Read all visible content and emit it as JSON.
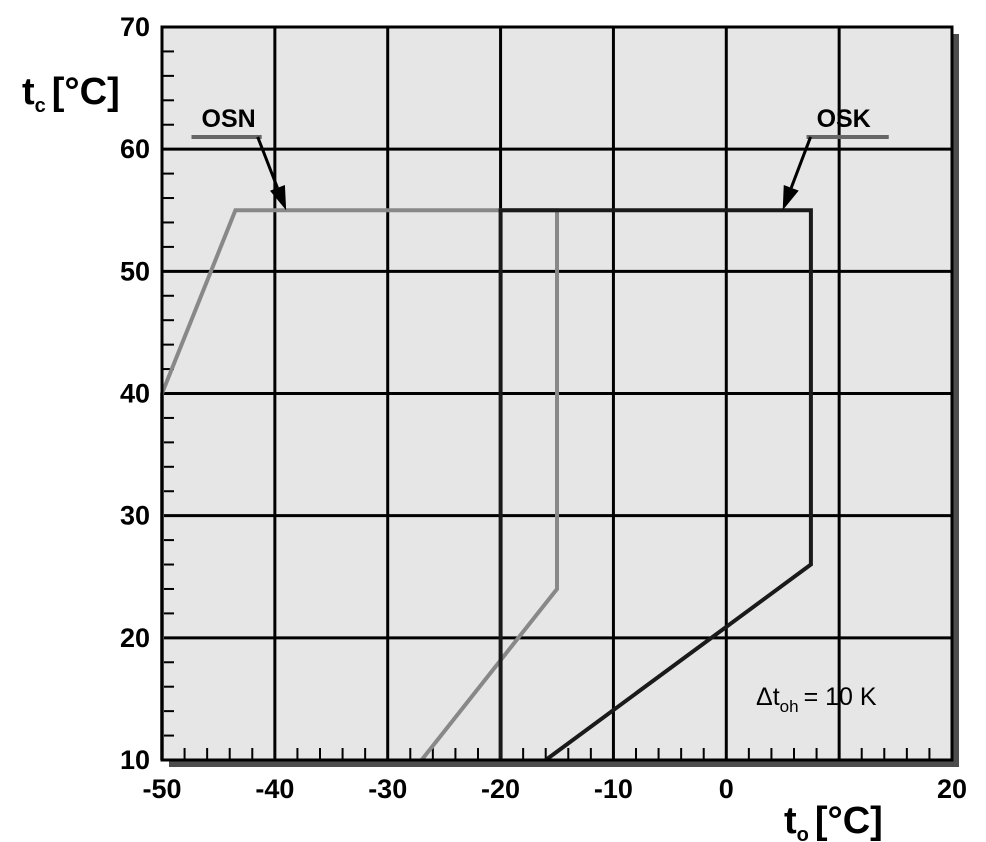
{
  "chart_data": {
    "type": "line",
    "xlabel": {
      "symbol": "t",
      "subscript": "o",
      "unit": "[°C]"
    },
    "ylabel": {
      "symbol": "t",
      "subscript": "c",
      "unit": "[°C]"
    },
    "xlim": [
      -50,
      20
    ],
    "ylim": [
      10,
      70
    ],
    "x_ticks": [
      -50,
      -40,
      -30,
      -20,
      -10,
      0,
      20
    ],
    "y_ticks": [
      10,
      20,
      30,
      40,
      50,
      60,
      70
    ],
    "grid": true,
    "series": [
      {
        "name": "OSN",
        "color": "#888888",
        "points": [
          [
            -50,
            10
          ],
          [
            -50,
            40
          ],
          [
            -43.5,
            55
          ],
          [
            -15,
            55
          ],
          [
            -15,
            24
          ],
          [
            -27,
            10
          ]
        ]
      },
      {
        "name": "OSK",
        "color": "#1a1a1a",
        "points": [
          [
            -20,
            10
          ],
          [
            -20,
            55
          ],
          [
            7.5,
            55
          ],
          [
            7.5,
            26
          ],
          [
            -16,
            10
          ]
        ]
      }
    ],
    "series_labels": [
      {
        "name": "OSN",
        "label_at": [
          -46.5,
          61
        ],
        "arrow_to": [
          -39,
          55
        ]
      },
      {
        "name": "OSK",
        "label_at": [
          8,
          61
        ],
        "arrow_to": [
          5,
          55
        ]
      }
    ],
    "annotation": {
      "delta": "Δ",
      "symbol": "t",
      "subscript": "oh",
      "text": "= 10 K",
      "position": "bottom-right"
    },
    "colors": {
      "plot_background": "#e6e6e6",
      "grid": "#000000",
      "shadow": "#4d4d4d"
    }
  }
}
